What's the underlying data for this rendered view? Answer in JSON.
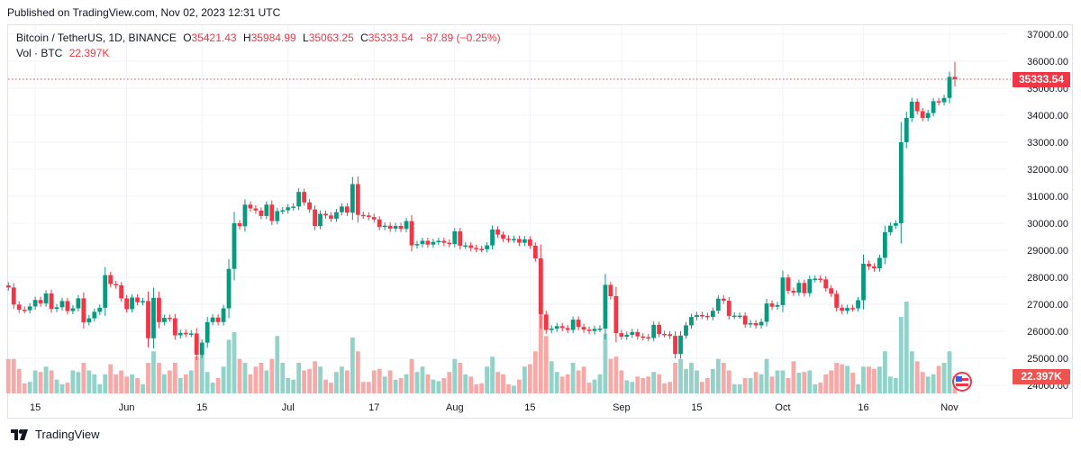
{
  "published": "Published on TradingView.com, Nov 02, 2023 12:31 UTC",
  "legend": {
    "symbol": "Bitcoin / TetherUS, 1D, BINANCE",
    "o_label": "O",
    "o": "35421.43",
    "h_label": "H",
    "h": "35984.99",
    "l_label": "L",
    "l": "35063.25",
    "c_label": "C",
    "c": "35333.54",
    "change": "−87.89 (−0.25%)",
    "vol_label": "Vol · BTC",
    "vol": "22.397K"
  },
  "footer": {
    "brand": "TradingView"
  },
  "colors": {
    "up": "#089981",
    "down": "#f23645",
    "up_vol": "#92d2c8",
    "down_vol": "#f7a9a7"
  },
  "chart_data": {
    "type": "candlestick",
    "title": "Bitcoin / TetherUS, 1D, BINANCE",
    "first_date": "2023-05-10",
    "last_date": "2023-11-02",
    "ylim": [
      24000,
      37000
    ],
    "y_ticks": [
      "37000.00",
      "36000.00",
      "35000.00",
      "34000.00",
      "33000.00",
      "32000.00",
      "31000.00",
      "30000.00",
      "29000.00",
      "28000.00",
      "27000.00",
      "26000.00",
      "25000.00",
      "24000.00"
    ],
    "x_ticks": [
      {
        "label": "15",
        "index": 5
      },
      {
        "label": "Jun",
        "index": 22
      },
      {
        "label": "15",
        "index": 36
      },
      {
        "label": "Jul",
        "index": 52
      },
      {
        "label": "17",
        "index": 68
      },
      {
        "label": "Aug",
        "index": 83
      },
      {
        "label": "15",
        "index": 97
      },
      {
        "label": "Sep",
        "index": 114
      },
      {
        "label": "15",
        "index": 128
      },
      {
        "label": "Oct",
        "index": 144
      },
      {
        "label": "16",
        "index": 159
      },
      {
        "label": "Nov",
        "index": 175
      }
    ],
    "last_price_label": "35333.54",
    "last_volume_label": "22.397K",
    "last_candle": {
      "o": 35421.43,
      "h": 35984.99,
      "l": 35063.25,
      "c": 35333.54
    },
    "first_open": 27700,
    "close": [
      27620,
      26990,
      26800,
      26780,
      26920,
      27160,
      27030,
      27400,
      26830,
      26890,
      27120,
      26750,
      26850,
      27220,
      26330,
      26480,
      26720,
      26870,
      28080,
      27750,
      27700,
      27220,
      26820,
      27250,
      27080,
      27120,
      25740,
      27240,
      26340,
      26500,
      26480,
      25850,
      25940,
      25900,
      25920,
      25130,
      25580,
      26340,
      26510,
      26340,
      26850,
      28310,
      30000,
      29890,
      30690,
      30550,
      30470,
      30270,
      30690,
      30080,
      30450,
      30480,
      30590,
      30620,
      31160,
      30770,
      30510,
      29900,
      30350,
      30290,
      30170,
      30410,
      30620,
      30390,
      31450,
      30310,
      30290,
      30230,
      30140,
      29860,
      29910,
      29800,
      29900,
      29790,
      30080,
      29180,
      29230,
      29350,
      29210,
      29310,
      29350,
      29280,
      29230,
      29700,
      29170,
      29180,
      29090,
      29050,
      29040,
      29180,
      29770,
      29580,
      29430,
      29400,
      29420,
      29280,
      29400,
      29170,
      28700,
      26620,
      26050,
      26100,
      26190,
      26120,
      26050,
      26430,
      26160,
      26060,
      26010,
      26090,
      26100,
      27720,
      27300,
      25930,
      25800,
      25870,
      25970,
      25810,
      25780,
      25750,
      26240,
      25900,
      25890,
      25830,
      25160,
      25840,
      26220,
      26530,
      26600,
      26570,
      26530,
      26760,
      27210,
      27130,
      26570,
      26580,
      26580,
      26250,
      26300,
      26220,
      26350,
      27030,
      26910,
      26970,
      27990,
      27500,
      27430,
      27790,
      27410,
      27930,
      27950,
      27920,
      27590,
      27390,
      26870,
      26760,
      26860,
      26850,
      27150,
      28500,
      28400,
      28330,
      28720,
      29670,
      29910,
      30000,
      33000,
      33900,
      34500,
      34150,
      33900,
      34080,
      34520,
      34480,
      34640,
      35420,
      35333.54
    ],
    "volume_k": [
      45,
      45,
      32,
      13,
      15,
      30,
      28,
      35,
      30,
      18,
      12,
      14,
      30,
      28,
      40,
      30,
      25,
      12,
      25,
      38,
      25,
      30,
      22,
      25,
      20,
      12,
      40,
      55,
      40,
      25,
      30,
      40,
      20,
      25,
      30,
      48,
      55,
      28,
      14,
      20,
      35,
      70,
      80,
      45,
      40,
      25,
      35,
      40,
      30,
      45,
      75,
      40,
      20,
      18,
      40,
      30,
      32,
      42,
      35,
      18,
      14,
      28,
      35,
      30,
      73,
      55,
      15,
      15,
      30,
      32,
      22,
      30,
      18,
      20,
      25,
      45,
      28,
      35,
      25,
      18,
      16,
      20,
      28,
      45,
      40,
      25,
      22,
      12,
      13,
      35,
      48,
      28,
      25,
      12,
      10,
      18,
      35,
      38,
      55,
      102,
      75,
      42,
      28,
      22,
      25,
      40,
      30,
      35,
      14,
      18,
      25,
      78,
      45,
      48,
      30,
      17,
      15,
      22,
      20,
      22,
      28,
      25,
      13,
      15,
      40,
      45,
      32,
      40,
      30,
      15,
      20,
      32,
      45,
      40,
      30,
      12,
      12,
      20,
      20,
      28,
      25,
      45,
      22,
      30,
      30,
      20,
      42,
      27,
      28,
      30,
      12,
      14,
      25,
      30,
      40,
      38,
      36,
      27,
      12,
      35,
      35,
      32,
      35,
      55,
      22,
      20,
      100,
      120,
      55,
      42,
      28,
      22,
      25,
      36,
      40,
      55,
      22.397
    ]
  }
}
